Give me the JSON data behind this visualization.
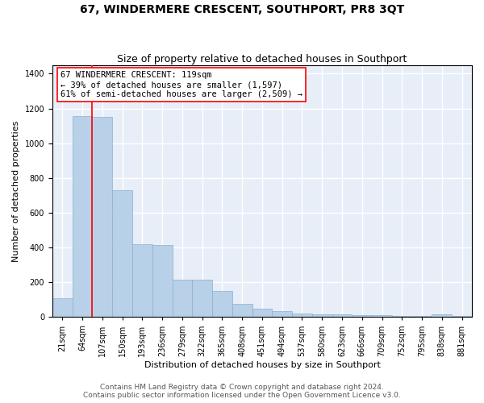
{
  "title": "67, WINDERMERE CRESCENT, SOUTHPORT, PR8 3QT",
  "subtitle": "Size of property relative to detached houses in Southport",
  "xlabel": "Distribution of detached houses by size in Southport",
  "ylabel": "Number of detached properties",
  "footer_line1": "Contains HM Land Registry data © Crown copyright and database right 2024.",
  "footer_line2": "Contains public sector information licensed under the Open Government Licence v3.0.",
  "categories": [
    "21sqm",
    "64sqm",
    "107sqm",
    "150sqm",
    "193sqm",
    "236sqm",
    "279sqm",
    "322sqm",
    "365sqm",
    "408sqm",
    "451sqm",
    "494sqm",
    "537sqm",
    "580sqm",
    "623sqm",
    "666sqm",
    "709sqm",
    "752sqm",
    "795sqm",
    "838sqm",
    "881sqm"
  ],
  "bar_heights": [
    110,
    1155,
    1150,
    730,
    420,
    415,
    215,
    215,
    150,
    75,
    50,
    33,
    20,
    15,
    15,
    10,
    10,
    5,
    5,
    15,
    5
  ],
  "bar_color": "#b8d0e8",
  "bar_edge_color": "#8ab0d0",
  "annotation_line1": "67 WINDERMERE CRESCENT: 119sqm",
  "annotation_line2": "← 39% of detached houses are smaller (1,597)",
  "annotation_line3": "61% of semi-detached houses are larger (2,509) →",
  "annotation_box_color": "white",
  "annotation_box_edge_color": "red",
  "vline_color": "red",
  "vline_x": 1.5,
  "ylim": [
    0,
    1450
  ],
  "yticks": [
    0,
    200,
    400,
    600,
    800,
    1000,
    1200,
    1400
  ],
  "background_color": "#e8eef8",
  "grid_color": "white",
  "title_fontsize": 10,
  "subtitle_fontsize": 9,
  "ylabel_fontsize": 8,
  "xlabel_fontsize": 8,
  "footer_fontsize": 6.5,
  "tick_fontsize": 7,
  "annotation_fontsize": 7.5
}
